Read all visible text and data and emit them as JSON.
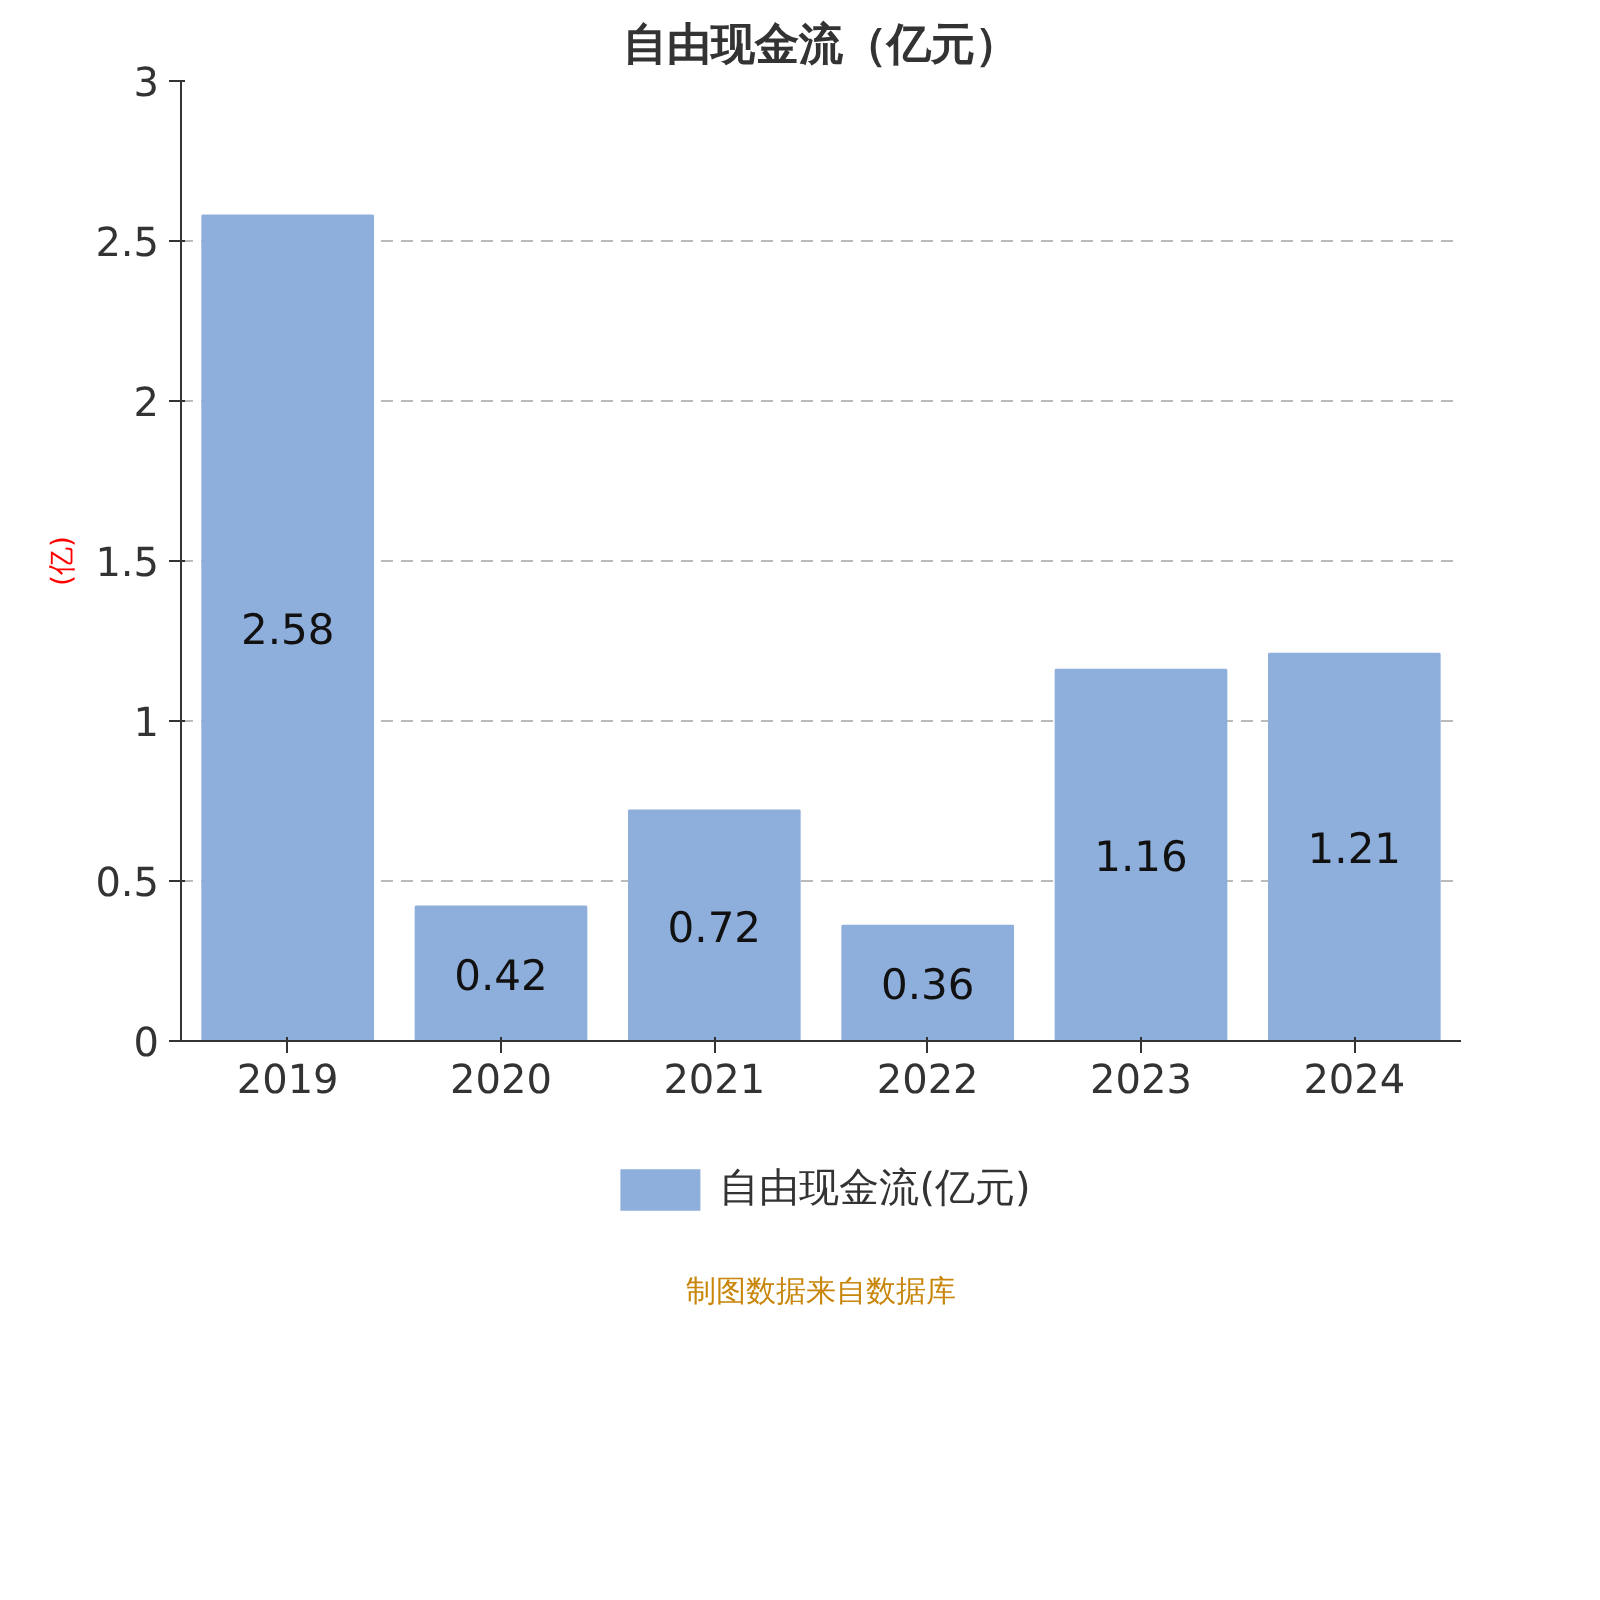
{
  "chart_data": {
    "type": "bar",
    "title": "自由现金流（亿元）",
    "ylabel": "(亿)",
    "categories": [
      "2019",
      "2020",
      "2021",
      "2022",
      "2023",
      "2024"
    ],
    "series": [
      {
        "name": "自由现金流(亿元)",
        "color": "#8eaedb",
        "values": [
          2.58,
          0.42,
          0.72,
          0.36,
          1.16,
          1.21
        ]
      }
    ],
    "ylim": [
      0,
      3
    ],
    "yticks": [
      0,
      0.5,
      1,
      1.5,
      2,
      2.5,
      3
    ],
    "grid": "y",
    "legend": "bottom",
    "data_labels": true,
    "annotations": [
      "制图数据来自数据库"
    ]
  }
}
